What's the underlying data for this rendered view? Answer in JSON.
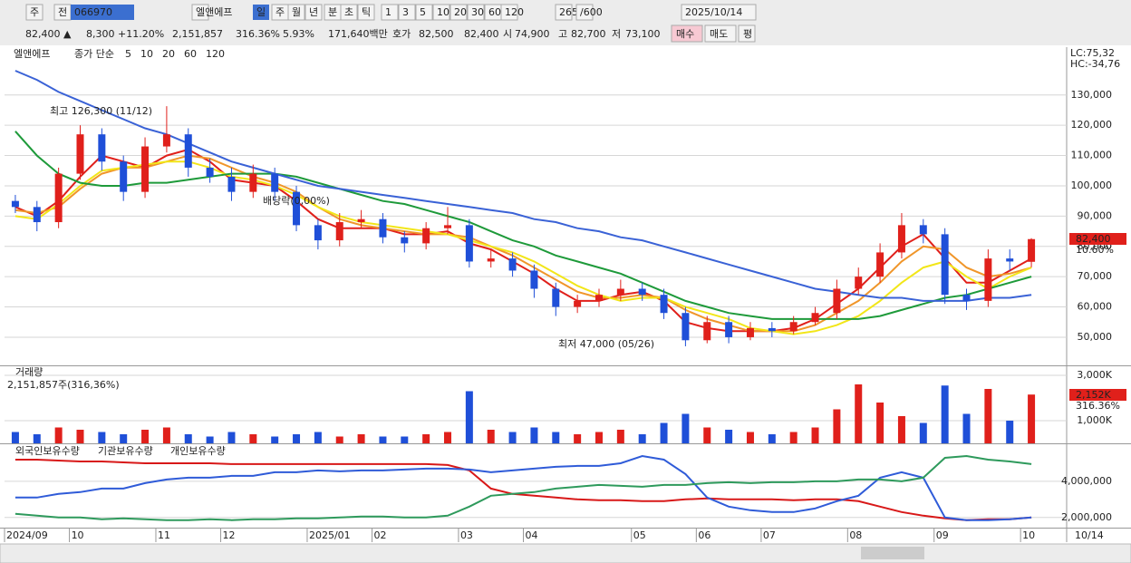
{
  "toolbar": {
    "row1": [
      "주",
      "전",
      "066970",
      "엘앤에프",
      "일",
      "주",
      "월",
      "년",
      "분",
      "초",
      "틱",
      "1",
      "3",
      "5",
      "10",
      "20",
      "30",
      "60",
      "120",
      "265",
      "/600",
      "2025/10/14"
    ],
    "row2": [
      "82,400 ▲",
      "8,300",
      "+11.20%",
      "2,151,857",
      "316.36%",
      "5.93%",
      "171,640백만",
      "호가",
      "82,500",
      "82,400",
      "시",
      "74,900",
      "고",
      "82,700",
      "저",
      "73,100",
      "매수",
      "매도",
      "평"
    ]
  },
  "chart_data": [
    {
      "type": "candlestick",
      "title": "엘앤에프",
      "legend_label": "종가 단순",
      "up_color": "#e0201b",
      "down_color": "#1f4fd8",
      "open": [
        95000,
        93000,
        88000,
        104000,
        117000,
        108000,
        98000,
        113000,
        117000,
        106000,
        103000,
        98000,
        104000,
        98000,
        87000,
        82000,
        88000,
        89000,
        83000,
        81000,
        86000,
        87000,
        75000,
        76000,
        72000,
        66000,
        60000,
        62000,
        64000,
        66000,
        64000,
        58000,
        49000,
        55000,
        50000,
        53000,
        52000,
        55000,
        58000,
        66000,
        70000,
        78000,
        87000,
        84000,
        64000,
        62000,
        76000,
        74900
      ],
      "high": [
        97000,
        95000,
        106000,
        120000,
        119000,
        110000,
        116000,
        126300,
        119000,
        109000,
        106000,
        107000,
        106000,
        100000,
        89000,
        91000,
        92000,
        91000,
        85000,
        88000,
        93000,
        89000,
        79000,
        78000,
        74000,
        68000,
        64000,
        66000,
        69000,
        68000,
        66000,
        60000,
        57000,
        57000,
        55000,
        55000,
        57000,
        60000,
        69000,
        73000,
        81000,
        91000,
        89000,
        86000,
        66000,
        79000,
        79000,
        82700
      ],
      "low": [
        91000,
        85000,
        86000,
        102000,
        105000,
        95000,
        96000,
        111000,
        103000,
        101000,
        95000,
        96000,
        95000,
        85000,
        79000,
        80000,
        86000,
        81000,
        78000,
        79000,
        84000,
        73000,
        73000,
        70000,
        63000,
        57000,
        58000,
        60000,
        62000,
        62000,
        56000,
        47000,
        48000,
        48000,
        49000,
        50000,
        51000,
        54000,
        56000,
        64000,
        68000,
        76000,
        81000,
        61000,
        59000,
        60000,
        72000,
        73100
      ],
      "close": [
        93000,
        88000,
        104000,
        117000,
        108000,
        98000,
        113000,
        117000,
        106000,
        103000,
        98000,
        104000,
        98000,
        87000,
        82000,
        88000,
        89000,
        83000,
        81000,
        86000,
        87000,
        75000,
        76000,
        72000,
        66000,
        60000,
        62000,
        64000,
        66000,
        64000,
        58000,
        49000,
        55000,
        50000,
        53000,
        52000,
        55000,
        58000,
        66000,
        70000,
        78000,
        87000,
        84000,
        64000,
        62000,
        76000,
        75000,
        82400
      ],
      "series": [
        {
          "name": "5",
          "color": "#e0201b",
          "values": [
            93000,
            90000,
            95000,
            103000,
            110000,
            108000,
            106000,
            110000,
            112000,
            108000,
            102000,
            101000,
            100000,
            95000,
            89000,
            86000,
            86000,
            86000,
            84000,
            84000,
            85000,
            81000,
            79000,
            75000,
            71000,
            66000,
            62000,
            62000,
            64000,
            65000,
            62000,
            55000,
            53000,
            52000,
            52000,
            52000,
            53000,
            56000,
            61000,
            66000,
            73000,
            80000,
            84000,
            76000,
            68000,
            68000,
            72000,
            76000
          ]
        },
        {
          "name": "10",
          "color": "#f0962a",
          "values": [
            92000,
            91000,
            93000,
            99000,
            104000,
            106000,
            106000,
            108000,
            110000,
            109000,
            106000,
            103000,
            101000,
            98000,
            93000,
            89000,
            87000,
            86000,
            85000,
            84000,
            84000,
            83000,
            80000,
            77000,
            73000,
            69000,
            65000,
            63000,
            63000,
            64000,
            63000,
            59000,
            56000,
            54000,
            52000,
            52000,
            52000,
            54000,
            58000,
            62000,
            68000,
            75000,
            80000,
            79000,
            73000,
            70000,
            71000,
            73000
          ]
        },
        {
          "name": "20",
          "color": "#f2e619",
          "values": [
            90000,
            89000,
            94000,
            100000,
            105000,
            106000,
            107000,
            108000,
            108000,
            106000,
            103000,
            102000,
            100000,
            97000,
            93000,
            90000,
            88000,
            87000,
            86000,
            85000,
            84000,
            82000,
            80000,
            78000,
            75000,
            71000,
            67000,
            64000,
            62000,
            63000,
            63000,
            60000,
            58000,
            56000,
            53000,
            52000,
            51000,
            52000,
            54000,
            57000,
            62000,
            68000,
            73000,
            75000,
            70000,
            66000,
            70000,
            73000
          ]
        },
        {
          "name": "60",
          "color": "#1e9a3a",
          "values": [
            118000,
            110000,
            104000,
            101000,
            100000,
            100000,
            101000,
            101000,
            102000,
            103000,
            104000,
            104000,
            104000,
            103000,
            101000,
            99000,
            97000,
            95000,
            94000,
            92000,
            90000,
            88000,
            85000,
            82000,
            80000,
            77000,
            75000,
            73000,
            71000,
            68000,
            65000,
            62000,
            60000,
            58000,
            57000,
            56000,
            56000,
            56000,
            56000,
            56000,
            57000,
            59000,
            61000,
            63000,
            64000,
            66000,
            68000,
            70000
          ]
        },
        {
          "name": "120",
          "color": "#3a62d6",
          "values": [
            138000,
            135000,
            131000,
            128000,
            125000,
            122000,
            119000,
            117000,
            114000,
            111000,
            108000,
            106000,
            104000,
            102000,
            100000,
            99000,
            98000,
            97000,
            96000,
            95000,
            94000,
            93000,
            92000,
            91000,
            89000,
            88000,
            86000,
            85000,
            83000,
            82000,
            80000,
            78000,
            76000,
            74000,
            72000,
            70000,
            68000,
            66000,
            65000,
            64000,
            63000,
            63000,
            62000,
            62000,
            62000,
            63000,
            63000,
            64000
          ]
        }
      ],
      "ylim": [
        40700,
        145800
      ],
      "yticks": [
        {
          "value": 50000,
          "label": "50,000"
        },
        {
          "value": 60000,
          "label": "60,000"
        },
        {
          "value": 70000,
          "label": "70,000"
        },
        {
          "value": 80000,
          "label": "80,000"
        },
        {
          "value": 90000,
          "label": "90,000"
        },
        {
          "value": 100000,
          "label": "100,000"
        },
        {
          "value": 110000,
          "label": "110,000"
        },
        {
          "value": 120000,
          "label": "120,000"
        },
        {
          "value": 130000,
          "label": "130,000"
        }
      ],
      "grid": true,
      "annotations": [
        "최고 126,300 (11/12)",
        "최저 47,000 (05/26)",
        "배당락(0,00%)",
        "LC:75,32",
        "HC:-34,76",
        "82,400",
        "10.60%"
      ]
    },
    {
      "type": "bar",
      "title": "거래량",
      "subtitle": "2,151,857주(316,36%)",
      "values": [
        500000,
        400000,
        700000,
        600000,
        500000,
        400000,
        600000,
        700000,
        400000,
        300000,
        500000,
        400000,
        300000,
        400000,
        500000,
        300000,
        400000,
        300000,
        300000,
        400000,
        500000,
        2300000,
        600000,
        500000,
        700000,
        500000,
        400000,
        500000,
        600000,
        400000,
        900000,
        1300000,
        700000,
        600000,
        500000,
        400000,
        500000,
        700000,
        1500000,
        2600000,
        1800000,
        1200000,
        900000,
        2550000,
        1300000,
        2400000,
        1000000,
        2151857
      ],
      "ylim": [
        0,
        3400000
      ],
      "yticks": [
        {
          "value": 1000000,
          "label": "1,000K"
        },
        {
          "value": 3000000,
          "label": "3,000K"
        }
      ],
      "grid": true,
      "annotations": [
        "2,152K",
        "316.36%"
      ]
    },
    {
      "type": "line",
      "categories": [
        "2024/09",
        null,
        null,
        "10",
        null,
        null,
        null,
        "11",
        null,
        null,
        "12",
        null,
        null,
        null,
        "2025/01",
        null,
        null,
        "02",
        null,
        null,
        null,
        "03",
        null,
        null,
        "04",
        null,
        null,
        null,
        null,
        "05",
        null,
        null,
        "06",
        null,
        null,
        "07",
        null,
        null,
        null,
        "08",
        null,
        null,
        null,
        "09",
        null,
        null,
        null,
        "10"
      ],
      "last_date": "10/14",
      "series": [
        {
          "name": "외국인보유수량",
          "color": "#d81818",
          "values": [
            5200000,
            5200000,
            5150000,
            5100000,
            5100000,
            5050000,
            5000000,
            5000000,
            5000000,
            5000000,
            4950000,
            4950000,
            4950000,
            4950000,
            4950000,
            4950000,
            4950000,
            4950000,
            4950000,
            4950000,
            4900000,
            4600000,
            3600000,
            3300000,
            3200000,
            3100000,
            3000000,
            2950000,
            2950000,
            2900000,
            2900000,
            3000000,
            3050000,
            3000000,
            3000000,
            3000000,
            2950000,
            3000000,
            3000000,
            2900000,
            2600000,
            2300000,
            2100000,
            1950000,
            1850000,
            1900000,
            1900000,
            2000000
          ]
        },
        {
          "name": "기관보유수량",
          "color": "#2f5bd8",
          "values": [
            3100000,
            3100000,
            3300000,
            3400000,
            3600000,
            3600000,
            3900000,
            4100000,
            4200000,
            4200000,
            4300000,
            4300000,
            4500000,
            4500000,
            4600000,
            4550000,
            4600000,
            4600000,
            4650000,
            4700000,
            4700000,
            4650000,
            4500000,
            4600000,
            4700000,
            4800000,
            4850000,
            4850000,
            5000000,
            5400000,
            5200000,
            4400000,
            3100000,
            2600000,
            2400000,
            2300000,
            2300000,
            2500000,
            2900000,
            3200000,
            4200000,
            4500000,
            4200000,
            2000000,
            1850000,
            1850000,
            1900000,
            2000000
          ]
        },
        {
          "name": "개인보유수량",
          "color": "#2e9a5c",
          "values": [
            2200000,
            2100000,
            2000000,
            2000000,
            1900000,
            1950000,
            1900000,
            1850000,
            1850000,
            1900000,
            1850000,
            1900000,
            1900000,
            1950000,
            1950000,
            2000000,
            2050000,
            2050000,
            2000000,
            2000000,
            2100000,
            2600000,
            3200000,
            3300000,
            3400000,
            3600000,
            3700000,
            3800000,
            3750000,
            3700000,
            3800000,
            3800000,
            3900000,
            3950000,
            3900000,
            3950000,
            3950000,
            4000000,
            4000000,
            4100000,
            4100000,
            4000000,
            4200000,
            5300000,
            5400000,
            5200000,
            5100000,
            4950000
          ]
        }
      ],
      "ylim": [
        1436000,
        6051000
      ],
      "yticks": [
        {
          "value": 2000000,
          "label": "2,000,000"
        },
        {
          "value": 4000000,
          "label": "4,000,000"
        }
      ],
      "grid": true
    }
  ]
}
